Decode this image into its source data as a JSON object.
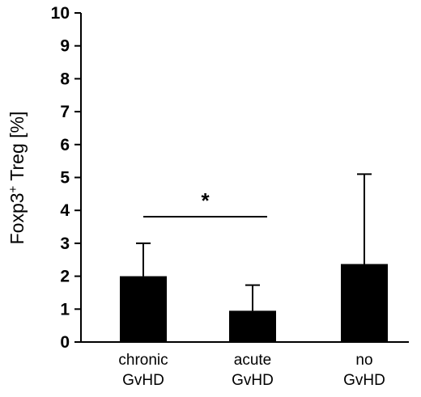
{
  "chart_data": {
    "type": "bar",
    "categories": [
      [
        "chronic",
        "GvHD"
      ],
      [
        "acute",
        "GvHD"
      ],
      [
        "no",
        "GvHD"
      ]
    ],
    "values": [
      2.0,
      0.95,
      2.37
    ],
    "error_upper": [
      3.0,
      1.73,
      5.1
    ],
    "ylabel": "Foxp3",
    "ylabel_superscript": "+",
    "ylabel_suffix": " Treg [%]",
    "ylim": [
      0,
      10
    ],
    "yticks": [
      0,
      1,
      2,
      3,
      4,
      5,
      6,
      7,
      8,
      9,
      10
    ],
    "grid": false,
    "bar_color": "#000000",
    "significance": {
      "between": [
        0,
        1
      ],
      "label": "*"
    }
  }
}
